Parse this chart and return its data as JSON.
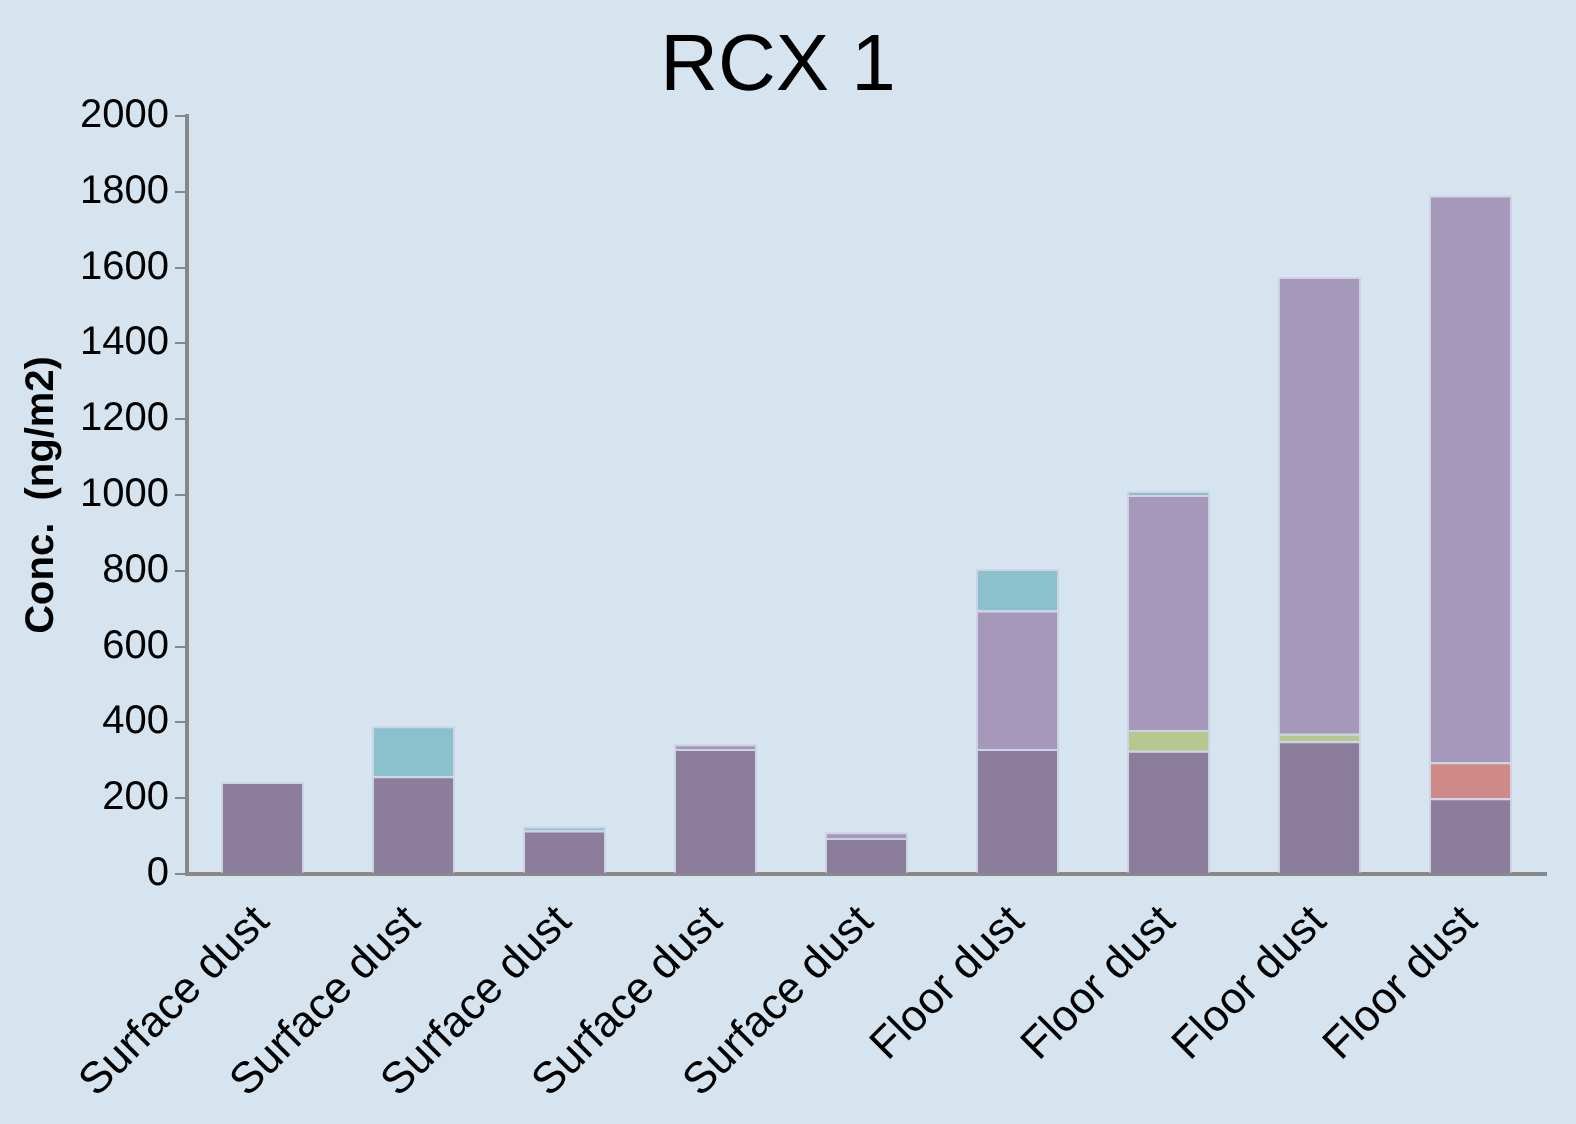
{
  "chart_data": {
    "type": "bar",
    "title": "RCX 1",
    "ylabel": "Conc.  (ng/m2)",
    "stacked": true,
    "grid": false,
    "legend": false,
    "categories": [
      "Surface dust",
      "Surface dust",
      "Surface dust",
      "Surface dust",
      "Surface dust",
      "Floor dust",
      "Floor dust",
      "Floor dust",
      "Floor dust"
    ],
    "ylim": [
      0,
      2000
    ],
    "yticks": [
      0,
      200,
      400,
      600,
      800,
      1000,
      1200,
      1400,
      1600,
      1800,
      2000
    ],
    "series": [
      {
        "color": "#8b7d9b",
        "values": [
          243,
          258,
          115,
          330,
          95,
          330,
          325,
          350,
          200
        ]
      },
      {
        "color": "#cf8a87",
        "values": [
          null,
          null,
          null,
          null,
          null,
          null,
          null,
          null,
          95
        ]
      },
      {
        "color": "#b6c78f",
        "values": [
          null,
          null,
          null,
          null,
          null,
          null,
          55,
          20,
          null
        ]
      },
      {
        "color": "#a698bb",
        "values": [
          null,
          null,
          null,
          12,
          15,
          365,
          620,
          1205,
          1495
        ]
      },
      {
        "color": "#8bc1cd",
        "values": [
          null,
          132,
          10,
          null,
          null,
          110,
          10,
          null,
          null
        ]
      }
    ]
  }
}
